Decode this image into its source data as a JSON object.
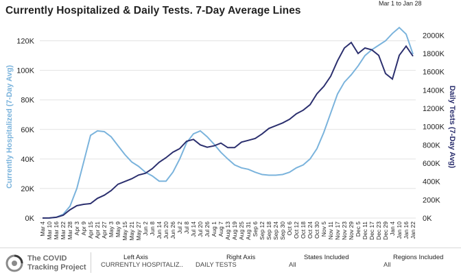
{
  "header": {
    "title": "Currently Hospitalized & Daily Tests. 7-Day Average Lines",
    "date_range": "Mar 1 to Jan 28"
  },
  "colors": {
    "hospitalized": "#7ab3dc",
    "tests": "#2b2f6e",
    "grid": "#e2e2e2"
  },
  "footer": {
    "logo_line1": "The COVID",
    "logo_line2": "Tracking Project",
    "left_axis_label": "Left Axis",
    "left_axis_value": "CURRENTLY HOSPITALIZ..",
    "right_axis_label": "Right Axis",
    "right_axis_value": "DAILY TESTS",
    "states_label": "States Included",
    "states_value": "All",
    "regions_label": "Regions Included",
    "regions_value": "All"
  },
  "chart_data": {
    "type": "line",
    "ylabel": "Currently Hospitalized (7-Day Avg)",
    "y2label": "Daily Tests (7-Day Avg)",
    "ylim": [
      0,
      130000
    ],
    "y2lim": [
      0,
      2100000
    ],
    "yticks": [
      "0K",
      "20K",
      "40K",
      "60K",
      "80K",
      "100K",
      "120K"
    ],
    "y2ticks": [
      "0K",
      "200K",
      "400K",
      "600K",
      "800K",
      "1000K",
      "1200K",
      "1400K",
      "1600K",
      "1800K",
      "2000K"
    ],
    "x": [
      "Mar 4",
      "Mar 10",
      "Mar 16",
      "Mar 22",
      "Mar 28",
      "Apr 3",
      "Apr 9",
      "Apr 15",
      "Apr 21",
      "Apr 27",
      "May 3",
      "May 9",
      "May 15",
      "May 21",
      "May 27",
      "Jun 2",
      "Jun 8",
      "Jun 14",
      "Jun 20",
      "Jun 26",
      "Jul 2",
      "Jul 8",
      "Jul 14",
      "Jul 20",
      "Jul 26",
      "Aug 1",
      "Aug 7",
      "Aug 13",
      "Aug 19",
      "Aug 25",
      "Aug 31",
      "Sep 6",
      "Sep 12",
      "Sep 18",
      "Sep 24",
      "Sep 30",
      "Oct 6",
      "Oct 12",
      "Oct 18",
      "Oct 24",
      "Oct 30",
      "Nov 5",
      "Nov 11",
      "Nov 17",
      "Nov 23",
      "Nov 29",
      "Dec 5",
      "Dec 11",
      "Dec 17",
      "Dec 23",
      "Dec 29",
      "Jan 4",
      "Jan 10",
      "Jan 16",
      "Jan 22"
    ],
    "series": [
      {
        "name": "Currently Hospitalized",
        "axis": "left",
        "color": "#7ab3dc",
        "values": [
          0,
          0,
          500,
          2500,
          8000,
          20000,
          38000,
          56000,
          59000,
          58500,
          55000,
          49000,
          43000,
          38000,
          35000,
          31000,
          28500,
          25000,
          25000,
          31000,
          40000,
          51000,
          57000,
          59000,
          55000,
          50000,
          44500,
          40000,
          36000,
          34000,
          33000,
          31000,
          29500,
          29000,
          29000,
          29500,
          31000,
          34000,
          36000,
          40000,
          47000,
          58000,
          71000,
          84000,
          92000,
          97000,
          103000,
          110000,
          114000,
          117000,
          120000,
          125000,
          129000,
          124500,
          111000
        ]
      },
      {
        "name": "Daily Tests",
        "axis": "right",
        "color": "#2b2f6e",
        "values": [
          0,
          1000,
          8000,
          30000,
          90000,
          135000,
          150000,
          158000,
          215000,
          250000,
          300000,
          370000,
          400000,
          430000,
          470000,
          490000,
          540000,
          610000,
          660000,
          720000,
          760000,
          840000,
          860000,
          800000,
          775000,
          790000,
          820000,
          770000,
          770000,
          830000,
          850000,
          870000,
          920000,
          980000,
          1010000,
          1040000,
          1080000,
          1140000,
          1180000,
          1240000,
          1360000,
          1440000,
          1550000,
          1720000,
          1860000,
          1920000,
          1800000,
          1860000,
          1840000,
          1780000,
          1580000,
          1520000,
          1780000,
          1880000,
          1770000
        ]
      }
    ]
  }
}
